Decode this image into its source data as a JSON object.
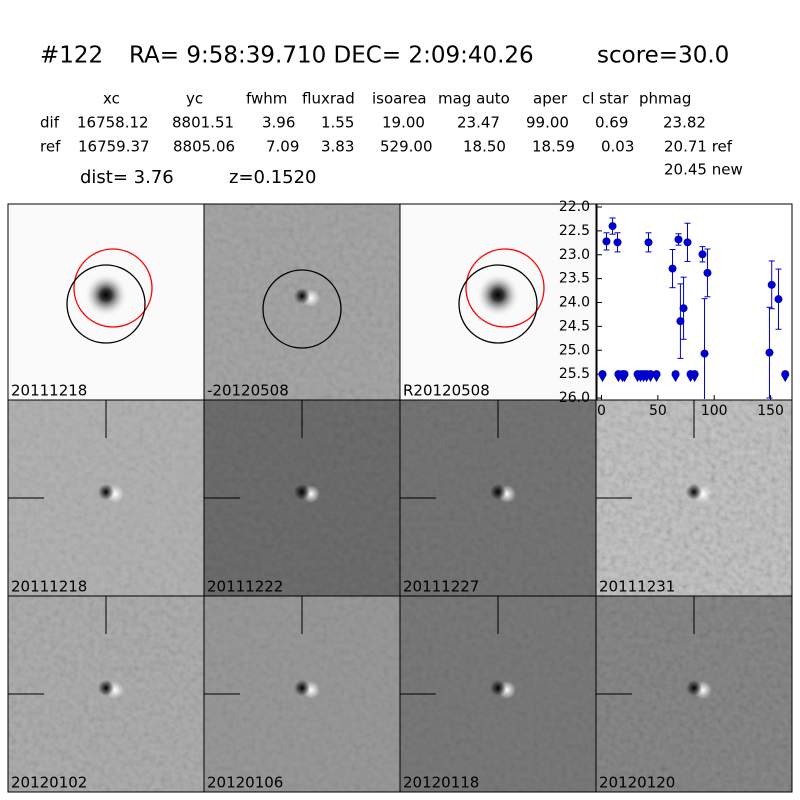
{
  "header": {
    "id": "#122",
    "coords": "RA= 9:58:39.710 DEC= 2:09:40.26",
    "score": "score=30.0"
  },
  "table": {
    "columns": [
      "xc",
      "yc",
      "fwhm",
      "fluxrad",
      "isoarea",
      "mag auto",
      "aper",
      "cl star",
      "phmag"
    ],
    "rows": [
      {
        "label": "dif",
        "cells": [
          "16758.12",
          "8801.51",
          "3.96",
          "1.55",
          "19.00",
          "23.47",
          "99.00",
          "0.69",
          "23.82"
        ]
      },
      {
        "label": "ref",
        "cells": [
          "16759.37",
          "8805.06",
          "7.09",
          "3.83",
          "529.00",
          "18.50",
          "18.59",
          "0.03",
          "20.71 ref"
        ]
      }
    ],
    "note": "20.45 new"
  },
  "dist": "dist=  3.76",
  "z": "z=0.1520",
  "panels": [
    {
      "label": "20111218"
    },
    {
      "label": "-20120508"
    },
    {
      "label": "R20120508"
    },
    {
      "label": "20111218",
      "color": "#ff0000"
    },
    {
      "label": "20111222"
    },
    {
      "label": "20111227"
    },
    {
      "label": "20111231"
    },
    {
      "label": "20120102"
    },
    {
      "label": "20120106"
    },
    {
      "label": "20120118"
    },
    {
      "label": "20120120"
    }
  ],
  "chart_data": {
    "type": "errorbar",
    "y_inverted": true,
    "xlim": [
      -4,
      169
    ],
    "ylim": [
      22.0,
      26.0
    ],
    "xticks": [
      0,
      50,
      100,
      150
    ],
    "yticks": [
      {
        "value": 22,
        "label": "22.0"
      },
      22.5,
      {
        "value": 23,
        "label": "23.0"
      },
      23.5,
      {
        "value": 24,
        "label": "24.0"
      },
      24.5,
      {
        "value": 25,
        "label": "25.0"
      },
      25.5,
      {
        "value": 26,
        "label": "26.0"
      }
    ],
    "series": [
      {
        "color": "#0000cc",
        "marker": "circle",
        "x": [
          4.4,
          9.8,
          14.2,
          41.7,
          63,
          68.3,
          70,
          72.8,
          76.3,
          89.6,
          91.4,
          94,
          149,
          151,
          157
        ],
        "values": [
          22.72,
          22.4,
          22.74,
          22.74,
          23.29,
          22.68,
          24.39,
          24.12,
          22.74,
          22.99,
          25.07,
          23.38,
          25.05,
          23.63,
          23.93
        ],
        "errors": [
          0.18,
          0.17,
          0.2,
          0.2,
          0.4,
          0.12,
          0.78,
          0.65,
          0.4,
          0.16,
          1.15,
          0.5,
          0.95,
          0.5,
          0.63
        ]
      },
      {
        "color": "#0000cc",
        "marker": "triangle",
        "x": [
          0.9,
          15,
          18.6,
          20.4,
          32,
          34.6,
          37.3,
          40,
          43.5,
          48.8,
          65.7,
          79,
          82.6,
          163
        ],
        "values": [
          25.5,
          25.5,
          25.5,
          25.5,
          25.5,
          25.5,
          25.5,
          25.5,
          25.5,
          25.5,
          25.5,
          25.5,
          25.5,
          25.5
        ]
      }
    ]
  }
}
